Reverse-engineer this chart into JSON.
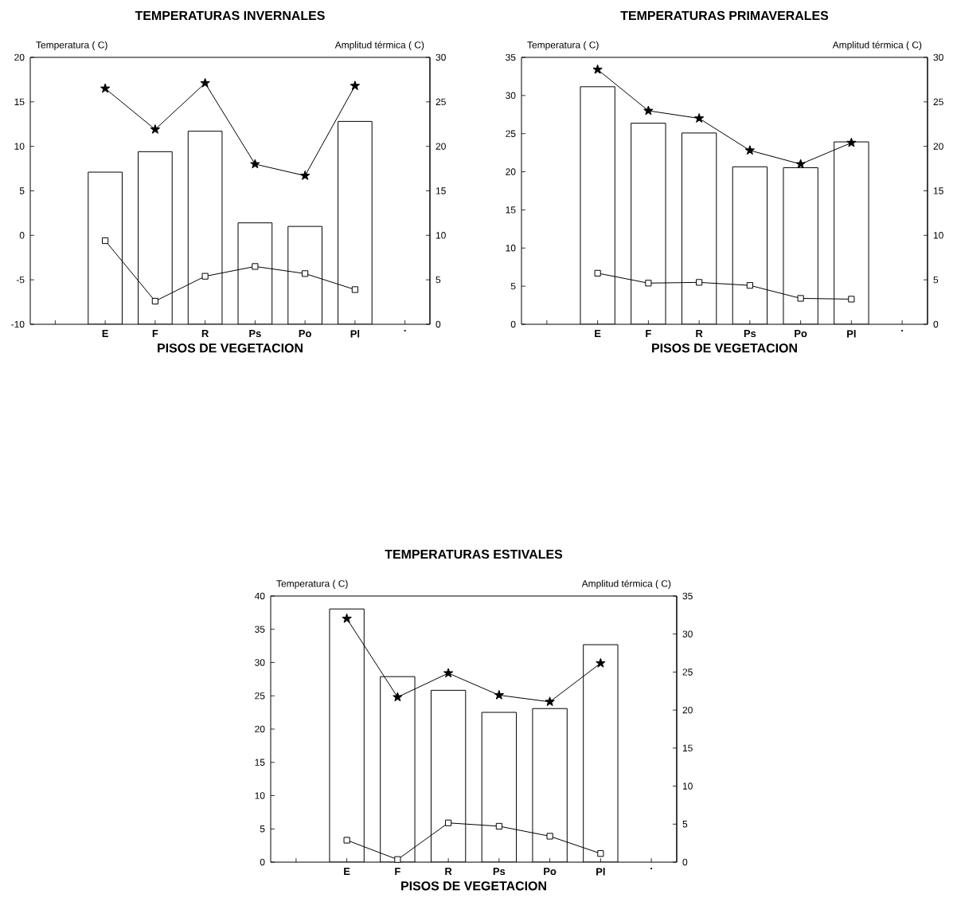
{
  "chart_data": [
    {
      "type": "bar",
      "title": "TEMPERATURAS INVERNALES",
      "xlabel": "PISOS DE VEGETACION",
      "ylabel": "Temperatura ( C)",
      "y2label": "Amplitud térmica ( C)",
      "categories": [
        null,
        "E",
        "F",
        "R",
        "Ps",
        "Po",
        "Pl",
        "."
      ],
      "ylim": [
        -10,
        20
      ],
      "yticks": [
        -10,
        -5,
        0,
        5,
        10,
        15,
        20
      ],
      "y2lim": [
        0,
        30
      ],
      "y2ticks": [
        0,
        5,
        10,
        15,
        20,
        25,
        30
      ],
      "series": [
        {
          "axis": "y2",
          "color": "#ffffff",
          "values": [
            null,
            17.1,
            19.4,
            21.7,
            11.4,
            11.0,
            22.8,
            null
          ]
        },
        {
          "type": "line",
          "marker": "star",
          "color": "#000000",
          "values": [
            null,
            16.5,
            11.9,
            17.1,
            8.0,
            6.7,
            16.8,
            null
          ]
        },
        {
          "type": "line",
          "marker": "square",
          "color": "#000000",
          "values": [
            null,
            -0.6,
            -7.4,
            -4.6,
            -3.5,
            -4.3,
            -6.1,
            null
          ]
        }
      ]
    },
    {
      "type": "bar",
      "title": "TEMPERATURAS PRIMAVERALES",
      "xlabel": "PISOS DE VEGETACION",
      "ylabel": "Temperatura ( C)",
      "y2label": "Amplitud térmica ( C)",
      "categories": [
        null,
        "E",
        "F",
        "R",
        "Ps",
        "Po",
        "Pl",
        "."
      ],
      "ylim": [
        0,
        35
      ],
      "yticks": [
        0,
        5,
        10,
        15,
        20,
        25,
        30,
        35
      ],
      "y2lim": [
        0,
        30
      ],
      "y2ticks": [
        0,
        5,
        10,
        15,
        20,
        25,
        30
      ],
      "series": [
        {
          "axis": "y2",
          "color": "#ffffff",
          "values": [
            null,
            26.7,
            22.6,
            21.5,
            17.7,
            17.6,
            20.5,
            null
          ]
        },
        {
          "type": "line",
          "marker": "star",
          "color": "#000000",
          "values": [
            null,
            33.4,
            28.0,
            27.0,
            22.8,
            21.0,
            23.8,
            null
          ]
        },
        {
          "type": "line",
          "marker": "square",
          "color": "#000000",
          "values": [
            null,
            6.7,
            5.4,
            5.5,
            5.1,
            3.4,
            3.3,
            null
          ]
        }
      ]
    },
    {
      "type": "bar",
      "title": "TEMPERATURAS ESTIVALES",
      "xlabel": "PISOS DE VEGETACION",
      "ylabel": "Temperatura ( C)",
      "y2label": "Amplitud térmica ( C)",
      "categories": [
        null,
        "E",
        "F",
        "R",
        "Ps",
        "Po",
        "Pl",
        "."
      ],
      "ylim": [
        0,
        40
      ],
      "yticks": [
        0,
        5,
        10,
        15,
        20,
        25,
        30,
        35,
        40
      ],
      "y2lim": [
        0,
        35
      ],
      "y2ticks": [
        0,
        5,
        10,
        15,
        20,
        25,
        30,
        35
      ],
      "series": [
        {
          "axis": "y2",
          "color": "#ffffff",
          "values": [
            null,
            33.3,
            24.4,
            22.6,
            19.7,
            20.2,
            28.6,
            null
          ]
        },
        {
          "type": "line",
          "marker": "star",
          "color": "#000000",
          "values": [
            null,
            36.6,
            24.8,
            28.4,
            25.1,
            24.1,
            29.9,
            null
          ]
        },
        {
          "type": "line",
          "marker": "square",
          "color": "#000000",
          "values": [
            null,
            3.3,
            0.4,
            5.9,
            5.4,
            3.9,
            1.3,
            null
          ]
        }
      ]
    }
  ]
}
